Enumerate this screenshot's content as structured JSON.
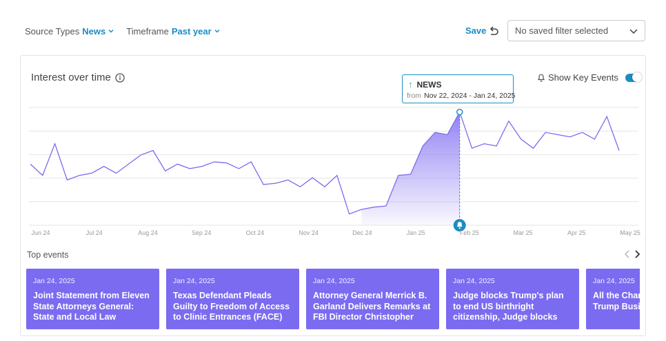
{
  "filters": {
    "source_types": {
      "label": "Source Types",
      "value": "News"
    },
    "timeframe": {
      "label": "Timeframe",
      "value": "Past year"
    }
  },
  "save_label": "Save",
  "saved_filter": {
    "value": "No saved filter selected"
  },
  "card": {
    "title": "Interest over time",
    "show_key_events_label": "Show Key Events",
    "show_key_events_on": true
  },
  "tooltip": {
    "series": "NEWS",
    "from_label": "from",
    "range": "Nov 22, 2024 - Jan 24, 2025"
  },
  "chart_data": {
    "type": "line",
    "x_tick_labels": [
      "Jun 24",
      "Jul 24",
      "Aug 24",
      "Sep 24",
      "Oct 24",
      "Nov 24",
      "Dec 24",
      "Jan 25",
      "Feb 25",
      "Mar 25",
      "Apr 25",
      "May 25"
    ],
    "values": [
      27,
      22,
      36,
      20,
      22,
      23,
      26,
      23,
      27,
      31,
      33,
      24,
      27,
      25,
      26,
      28,
      27.5,
      25,
      28,
      18,
      18.5,
      20,
      17,
      21,
      17,
      22,
      5,
      7,
      8,
      8.5,
      22,
      22.5,
      35,
      41,
      40,
      50,
      34,
      36,
      35,
      46,
      38,
      34,
      41,
      40,
      39,
      41,
      38,
      48,
      33
    ],
    "highlight_start_index": 27,
    "highlight_end_index": 35,
    "key_event_index": 35,
    "ylim": [
      0,
      52
    ],
    "grid": true,
    "colors": {
      "line": "#7b6bf0",
      "fill": "#8c7cf3",
      "accent": "#1a8cc4"
    }
  },
  "top_events": {
    "title": "Top events",
    "items": [
      {
        "date": "Jan 24, 2025",
        "text": "Joint Statement from Eleven State Attorneys General: State and Local Law Enforcement…"
      },
      {
        "date": "Jan 24, 2025",
        "text": "Texas Defendant Pleads Guilty to Freedom of Access to Clinic Entrances (FACE) Act Violation…"
      },
      {
        "date": "Jan 24, 2025",
        "text": "Attorney General Merrick B. Garland Delivers Remarks at FBI Director Christopher Wray…"
      },
      {
        "date": "Jan 24, 2025",
        "text": "Judge blocks Trump's plan to end US birthright citizenship, Judge blocks Trump's birthrig…"
      },
      {
        "date": "Jan 24, 2025",
        "text": "All the Changes Orders Trump Business Insider"
      }
    ]
  },
  "icons": {
    "undo": "undo-icon",
    "info": "info-icon",
    "bell": "bell-icon",
    "prev": "chevron-left-icon",
    "next": "chevron-right-icon"
  }
}
